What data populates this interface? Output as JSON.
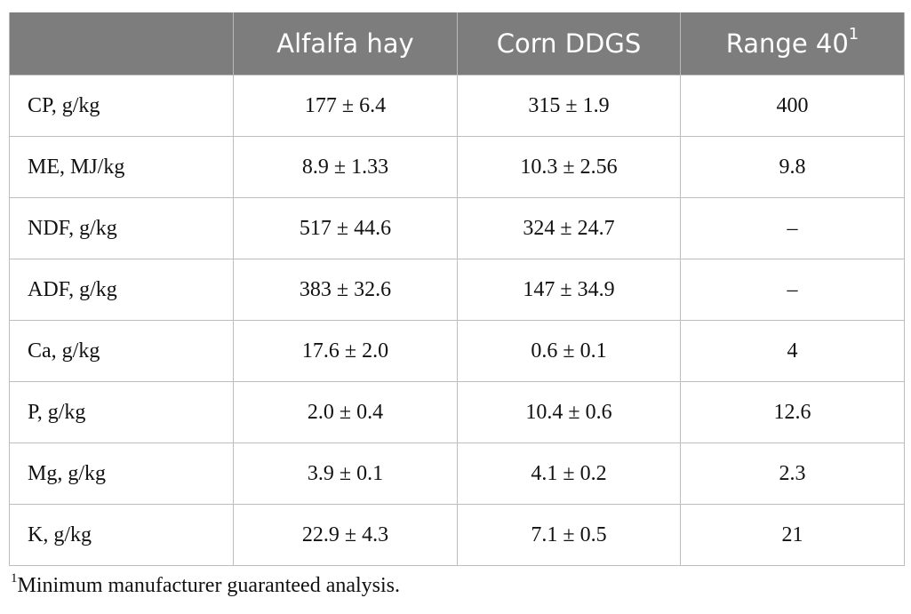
{
  "table": {
    "headers": [
      {
        "label": "",
        "sup": ""
      },
      {
        "label": "Alfalfa hay",
        "sup": ""
      },
      {
        "label": "Corn DDGS",
        "sup": ""
      },
      {
        "label": "Range 40",
        "sup": "1"
      }
    ],
    "rows": [
      [
        "CP, g/kg",
        "177 ± 6.4",
        "315 ± 1.9",
        "400"
      ],
      [
        "ME, MJ/kg",
        "8.9 ± 1.33",
        "10.3 ± 2.56",
        "9.8"
      ],
      [
        "NDF, g/kg",
        "517 ± 44.6",
        "324 ± 24.7",
        "–"
      ],
      [
        "ADF, g/kg",
        "383 ± 32.6",
        "147 ± 34.9",
        "–"
      ],
      [
        "Ca, g/kg",
        "17.6 ± 2.0",
        "0.6 ± 0.1",
        "4"
      ],
      [
        "P, g/kg",
        "2.0 ± 0.4",
        "10.4 ± 0.6",
        "12.6"
      ],
      [
        "Mg, g/kg",
        "3.9 ± 0.1",
        "4.1 ± 0.2",
        "2.3"
      ],
      [
        "K, g/kg",
        "22.9 ± 4.3",
        "7.1 ± 0.5",
        "21"
      ]
    ]
  },
  "footnote": {
    "marker": "1",
    "text": "Minimum manufacturer guaranteed analysis."
  },
  "colors": {
    "header_background": "#7d7d7d",
    "header_text": "#ffffff",
    "grid_line": "#bdbdbd"
  }
}
